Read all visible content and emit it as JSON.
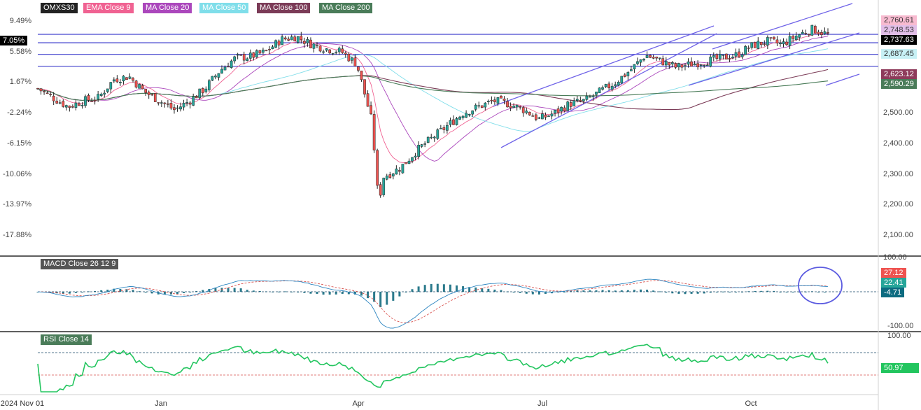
{
  "chart_data": {
    "type": "candlestick",
    "symbol": "OMXS30",
    "indicators": [
      {
        "name": "EMA Close 9",
        "color": "#f06292"
      },
      {
        "name": "MA Close 20",
        "color": "#ab47bc"
      },
      {
        "name": "MA Close 50",
        "color": "#80deea"
      },
      {
        "name": "MA Close 100",
        "color": "#7b3b57"
      },
      {
        "name": "MA Close 200",
        "color": "#4a7c59"
      }
    ],
    "colors": {
      "up": "#26a69a",
      "down": "#ef5350",
      "level_line": "#3c3ccc",
      "channel": "#6f63e8",
      "rsi": "#22c55e",
      "macd_line": "#2e86c1",
      "macd_signal": "#d9534f",
      "histogram": "#2b7a8c"
    },
    "x_ticks": [
      "2024 Nov 01",
      "Jan",
      "Apr",
      "Jul",
      "Oct"
    ],
    "left_ticks": [
      "9.49%",
      "5.58%",
      "1.67%",
      "-2.24%",
      "-6.15%",
      "-10.06%",
      "-13.97%",
      "-17.88%"
    ],
    "left_marker": "7.05%",
    "right_ticks": [
      "2,500.00",
      "2,400.00",
      "2,300.00",
      "2,200.00",
      "2,100.00",
      "100.00"
    ],
    "ylim": [
      2080,
      2795
    ],
    "price_labels": [
      {
        "value": 2760.61,
        "text": "2,760.61",
        "color": "#f48fb1"
      },
      {
        "value": 2748.53,
        "text": "2,748.53",
        "color": "#ce93d8"
      },
      {
        "value": 2737.63,
        "text": "2,737.63",
        "color": "#000000"
      },
      {
        "value": 2687.45,
        "text": "2,687.45",
        "color": "#b2ebf2"
      },
      {
        "value": 2623.12,
        "text": "2,623.12",
        "color": "#8e3b5b"
      },
      {
        "value": 2590.29,
        "text": "2,590.29",
        "color": "#4a7c59"
      }
    ],
    "horizontal_levels": [
      2737.6,
      2710.0,
      2672.0,
      2633.0
    ],
    "series_points": [
      [
        "2024-11-01",
        2560
      ],
      [
        "2024-11-08",
        2530
      ],
      [
        "2024-11-15",
        2500
      ],
      [
        "2024-11-22",
        2520
      ],
      [
        "2024-11-29",
        2530
      ],
      [
        "2024-12-06",
        2590
      ],
      [
        "2024-12-13",
        2600
      ],
      [
        "2024-12-20",
        2550
      ],
      [
        "2024-12-27",
        2520
      ],
      [
        "2025-01-03",
        2490
      ],
      [
        "2025-01-10",
        2520
      ],
      [
        "2025-01-17",
        2560
      ],
      [
        "2025-01-24",
        2620
      ],
      [
        "2025-01-31",
        2660
      ],
      [
        "2025-02-07",
        2665
      ],
      [
        "2025-02-14",
        2680
      ],
      [
        "2025-02-21",
        2720
      ],
      [
        "2025-02-28",
        2730
      ],
      [
        "2025-03-07",
        2705
      ],
      [
        "2025-03-14",
        2690
      ],
      [
        "2025-03-21",
        2680
      ],
      [
        "2025-03-28",
        2640
      ],
      [
        "2025-04-04",
        2450
      ],
      [
        "2025-04-07",
        2180
      ],
      [
        "2025-04-09",
        2270
      ],
      [
        "2025-04-17",
        2300
      ],
      [
        "2025-04-25",
        2360
      ],
      [
        "2025-05-02",
        2400
      ],
      [
        "2025-05-09",
        2440
      ],
      [
        "2025-05-16",
        2480
      ],
      [
        "2025-05-23",
        2500
      ],
      [
        "2025-05-30",
        2520
      ],
      [
        "2025-06-06",
        2510
      ],
      [
        "2025-06-13",
        2490
      ],
      [
        "2025-06-20",
        2460
      ],
      [
        "2025-06-27",
        2480
      ],
      [
        "2025-07-04",
        2510
      ],
      [
        "2025-07-11",
        2520
      ],
      [
        "2025-07-18",
        2550
      ],
      [
        "2025-07-25",
        2580
      ],
      [
        "2025-08-01",
        2620
      ],
      [
        "2025-08-08",
        2670
      ],
      [
        "2025-08-15",
        2650
      ],
      [
        "2025-08-22",
        2630
      ],
      [
        "2025-08-29",
        2640
      ],
      [
        "2025-09-05",
        2650
      ],
      [
        "2025-09-12",
        2660
      ],
      [
        "2025-09-19",
        2670
      ],
      [
        "2025-09-26",
        2700
      ],
      [
        "2025-10-03",
        2715
      ],
      [
        "2025-10-10",
        2705
      ],
      [
        "2025-10-17",
        2735
      ],
      [
        "2025-10-24",
        2755
      ],
      [
        "2025-10-31",
        2737
      ]
    ],
    "macd": {
      "title": "MACD Close 26 12 9",
      "ticks": [
        "-100.00"
      ],
      "labels": [
        {
          "text": "27.12",
          "color": "#ef5350"
        },
        {
          "text": "22.41",
          "color": "#26a69a"
        },
        {
          "text": "-4.71",
          "color": "#0d6b80"
        }
      ]
    },
    "rsi": {
      "title": "RSI Close 14",
      "ticks": [
        "100.00"
      ],
      "value_label": "50.97",
      "last_value": 50.97
    }
  }
}
